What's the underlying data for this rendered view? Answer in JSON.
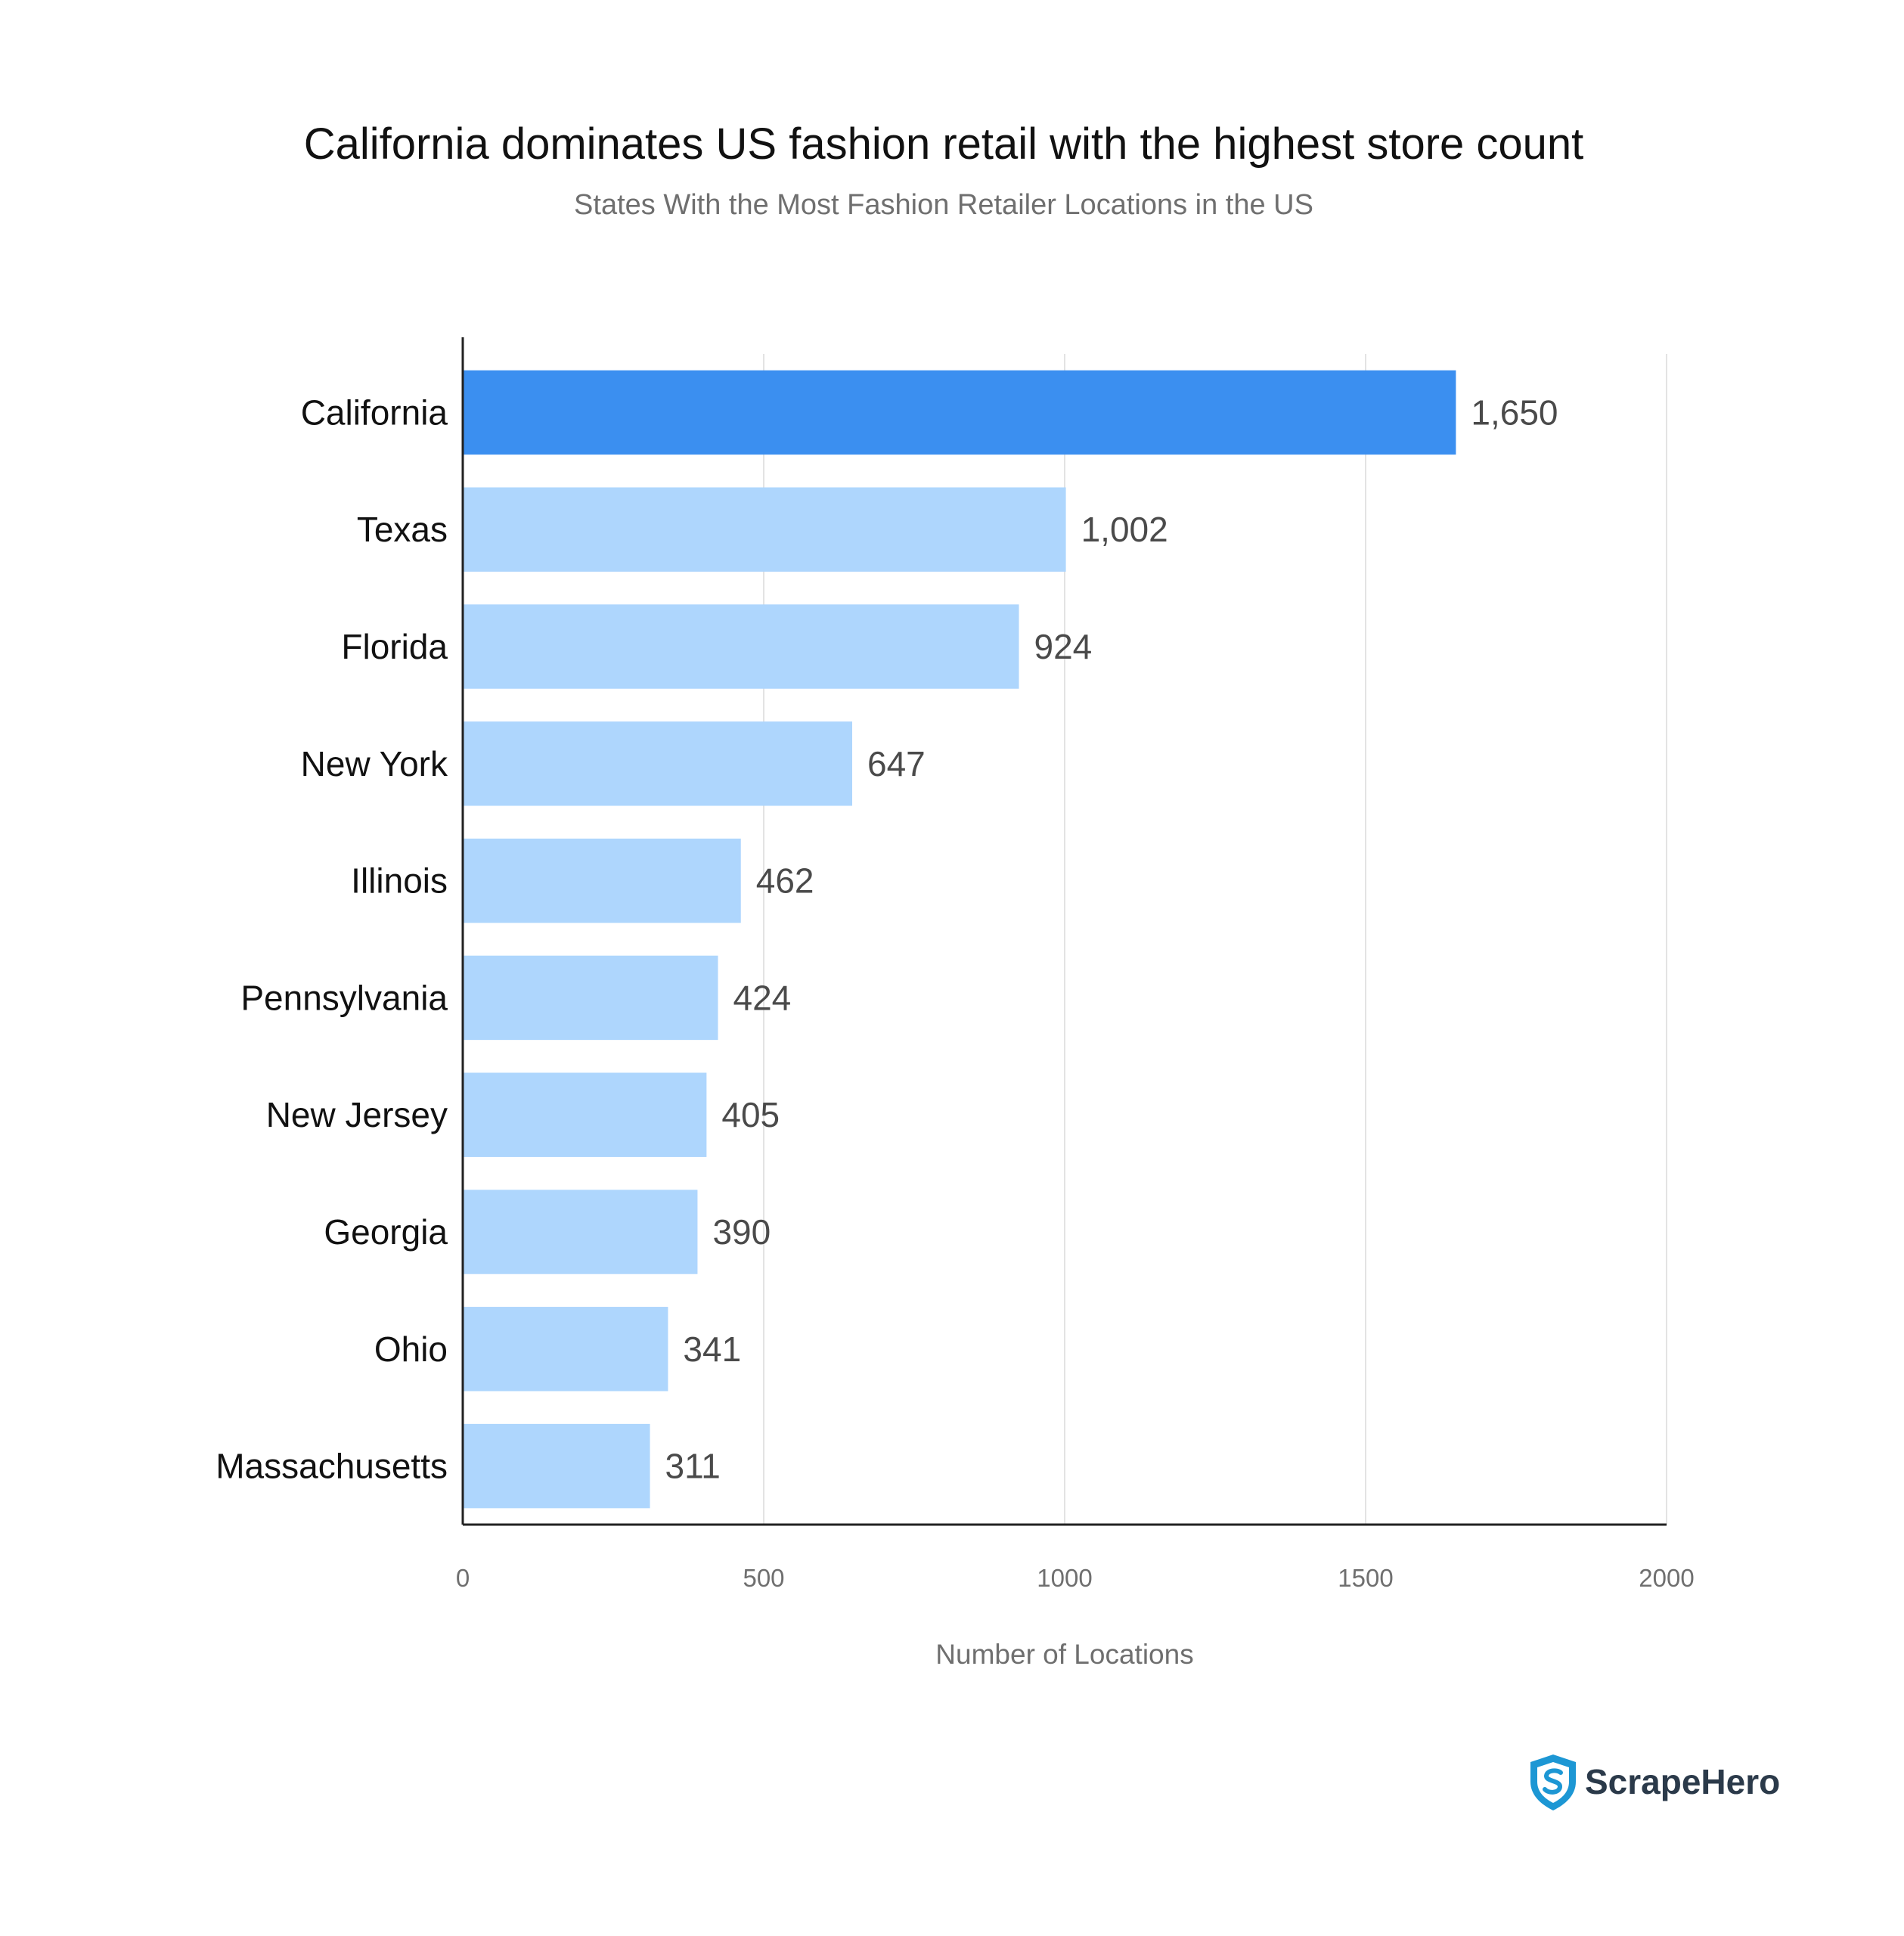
{
  "chart_data": {
    "type": "bar",
    "orientation": "horizontal",
    "title": "California dominates US fashion retail with the highest store count",
    "subtitle": "States With the Most Fashion Retailer Locations in the US",
    "xlabel": "Number of Locations",
    "ylabel": "",
    "xlim": [
      0,
      2000
    ],
    "xticks": [
      0,
      500,
      1000,
      1500,
      2000
    ],
    "grid": true,
    "categories": [
      "California",
      "Texas",
      "Florida",
      "New York",
      "Illinois",
      "Pennsylvania",
      "New Jersey",
      "Georgia",
      "Ohio",
      "Massachusetts"
    ],
    "values": [
      1650,
      1002,
      924,
      647,
      462,
      424,
      405,
      390,
      341,
      311
    ],
    "value_labels": [
      "1,650",
      "1,002",
      "924",
      "647",
      "462",
      "424",
      "405",
      "390",
      "341",
      "311"
    ],
    "highlight_index": 0,
    "colors": {
      "highlight": "#3b8ff0",
      "bar": "#aed6fd",
      "axis": "#222222",
      "grid": "#e3e3e3"
    }
  },
  "brand": {
    "name": "ScrapeHero",
    "icon": "shield-logo-icon",
    "colors": {
      "outer": "#1d97d4",
      "inner": "#ffffff"
    }
  }
}
